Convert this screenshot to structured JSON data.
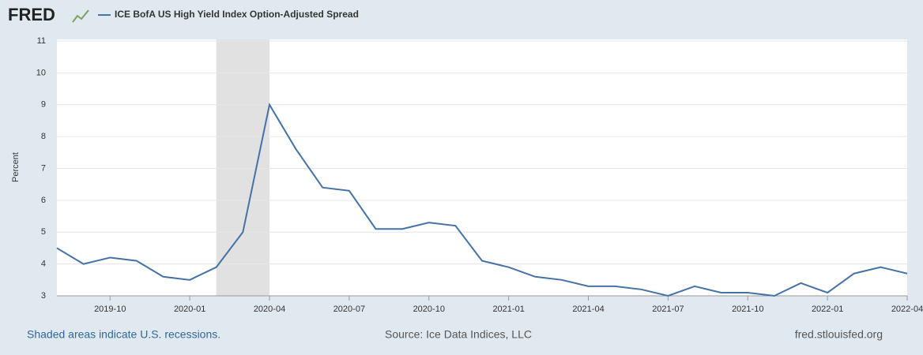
{
  "logo": "FRED",
  "chart_data": {
    "type": "line",
    "title": "ICE BofA US High Yield Index Option-Adjusted Spread",
    "y_label": "Percent",
    "x": [
      "2019-08",
      "2019-09",
      "2019-10",
      "2019-11",
      "2019-12",
      "2020-01",
      "2020-02",
      "2020-03",
      "2020-04",
      "2020-05",
      "2020-06",
      "2020-07",
      "2020-08",
      "2020-09",
      "2020-10",
      "2020-11",
      "2020-12",
      "2021-01",
      "2021-02",
      "2021-03",
      "2021-04",
      "2021-05",
      "2021-06",
      "2021-07",
      "2021-08",
      "2021-09",
      "2021-10",
      "2021-11",
      "2021-12",
      "2022-01",
      "2022-02",
      "2022-03",
      "2022-04"
    ],
    "series": [
      {
        "name": "ICE BofA US High Yield Index Option-Adjusted Spread",
        "color": "#4572a7",
        "values": [
          4.5,
          4.0,
          4.2,
          4.1,
          3.6,
          3.5,
          3.9,
          5.0,
          9.0,
          7.6,
          6.4,
          6.3,
          5.1,
          5.1,
          5.3,
          5.2,
          4.1,
          3.9,
          3.6,
          3.5,
          3.3,
          3.3,
          3.2,
          3.0,
          3.3,
          3.1,
          3.1,
          3.0,
          3.4,
          3.1,
          3.7,
          3.9,
          3.7
        ]
      }
    ],
    "recessions": [
      [
        "2020-02",
        "2020-04"
      ]
    ],
    "xlim": [
      "2019-08",
      "2022-04"
    ],
    "xticks": [
      "2019-10",
      "2020-01",
      "2020-04",
      "2020-07",
      "2020-10",
      "2021-01",
      "2021-04",
      "2021-07",
      "2021-10",
      "2022-01",
      "2022-04"
    ],
    "ylim": [
      3,
      11
    ],
    "yticks": [
      3,
      4,
      5,
      6,
      7,
      8,
      9,
      10,
      11
    ],
    "grid": true
  },
  "footer": {
    "left": "Shaded areas indicate U.S. recessions.",
    "center": "Source: Ice Data Indices, LLC",
    "right": "fred.stlouisfed.org"
  }
}
